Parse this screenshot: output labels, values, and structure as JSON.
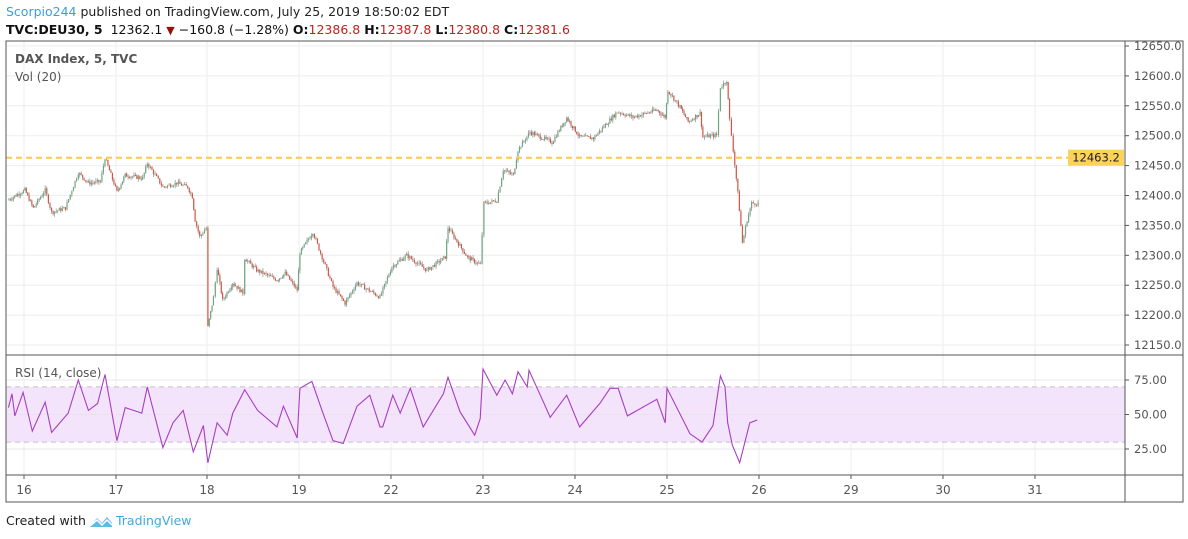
{
  "header": {
    "author": "Scorpio244",
    "published_text": "published on TradingView.com, July 25, 2019 18:50:02 EDT",
    "symbol": "TVC:DEU30, 5",
    "last": "12362.1",
    "change_direction_icon": "triangle-down",
    "change": "−160.8 (−1.28%)",
    "o_label": "O:",
    "o": "12386.8",
    "h_label": "H:",
    "h": "12387.8",
    "l_label": "L:",
    "l": "12380.8",
    "c_label": "C:",
    "c": "12381.6"
  },
  "footer": {
    "created_with": "Created with",
    "brand": "TradingView",
    "logo_icon": "tradingview-cloud-logo"
  },
  "colors": {
    "up": "#6ba583",
    "down": "#d75442",
    "rsi": "#a63fc0",
    "rsi_band": "#f3e4fc",
    "hline": "#fbc94b",
    "brand": "#3fa9dd"
  },
  "chart_data": [
    {
      "type": "candlestick",
      "title": "DAX Index, 5, TVC",
      "subtitle": "Vol (20)",
      "x_unit": "day of July 2019 (fraction = share of day's bar span)",
      "x_ticks": [
        "16",
        "17",
        "18",
        "19",
        "22",
        "23",
        "24",
        "25",
        "26",
        "29",
        "30",
        "31"
      ],
      "y_ticks": [
        "12650.0",
        "12600.0",
        "12550.0",
        "12500.0",
        "12450.0",
        "12400.0",
        "12350.0",
        "12300.0",
        "12250.0",
        "12200.0",
        "12150.0"
      ],
      "ylim": [
        12130,
        12665
      ],
      "horizontal_line": {
        "value": 12463.2,
        "label": "12463.2",
        "style": "dashed"
      },
      "grid": true,
      "approx_close_path": [
        [
          15.82,
          12392
        ],
        [
          16.01,
          12409
        ],
        [
          16.1,
          12379
        ],
        [
          16.23,
          12409
        ],
        [
          16.3,
          12372
        ],
        [
          16.45,
          12379
        ],
        [
          16.52,
          12409
        ],
        [
          16.59,
          12438
        ],
        [
          16.7,
          12421
        ],
        [
          16.83,
          12423
        ],
        [
          16.88,
          12463
        ],
        [
          17.01,
          12406
        ],
        [
          17.1,
          12434
        ],
        [
          17.29,
          12429
        ],
        [
          17.34,
          12454
        ],
        [
          17.51,
          12414
        ],
        [
          17.66,
          12421
        ],
        [
          17.78,
          12414
        ],
        [
          17.83,
          12398
        ],
        [
          17.86,
          12359
        ],
        [
          17.91,
          12331
        ],
        [
          17.98,
          12346
        ],
        [
          18.01,
          12180
        ],
        [
          18.07,
          12230
        ],
        [
          18.11,
          12279
        ],
        [
          18.17,
          12225
        ],
        [
          18.28,
          12254
        ],
        [
          18.39,
          12237
        ],
        [
          18.41,
          12295
        ],
        [
          18.54,
          12275
        ],
        [
          18.76,
          12259
        ],
        [
          18.85,
          12270
        ],
        [
          18.98,
          12242
        ],
        [
          19.01,
          12304
        ],
        [
          19.15,
          12339
        ],
        [
          19.37,
          12247
        ],
        [
          19.5,
          12220
        ],
        [
          19.63,
          12254
        ],
        [
          19.88,
          12230
        ],
        [
          22.01,
          12281
        ],
        [
          22.17,
          12300
        ],
        [
          22.39,
          12275
        ],
        [
          22.59,
          12297
        ],
        [
          22.62,
          12346
        ],
        [
          22.83,
          12297
        ],
        [
          22.97,
          12284
        ],
        [
          23.01,
          12387
        ],
        [
          23.08,
          12389
        ],
        [
          23.15,
          12392
        ],
        [
          23.22,
          12443
        ],
        [
          23.33,
          12434
        ],
        [
          23.38,
          12476
        ],
        [
          23.51,
          12506
        ],
        [
          23.75,
          12489
        ],
        [
          23.91,
          12530
        ],
        [
          24.05,
          12498
        ],
        [
          24.2,
          12496
        ],
        [
          24.46,
          12540
        ],
        [
          24.63,
          12531
        ],
        [
          24.89,
          12543
        ],
        [
          24.98,
          12531
        ],
        [
          25.01,
          12576
        ],
        [
          25.14,
          12548
        ],
        [
          25.23,
          12523
        ],
        [
          25.36,
          12538
        ],
        [
          25.39,
          12498
        ],
        [
          25.54,
          12501
        ],
        [
          25.58,
          12581
        ],
        [
          25.65,
          12593
        ],
        [
          25.68,
          12526
        ],
        [
          25.72,
          12476
        ],
        [
          25.77,
          12404
        ],
        [
          25.82,
          12321
        ],
        [
          25.87,
          12359
        ],
        [
          25.92,
          12387
        ],
        [
          25.99,
          12387
        ]
      ]
    },
    {
      "type": "line",
      "title": "RSI (14, close)",
      "y_ticks": [
        "75.00",
        "50.00",
        "25.00"
      ],
      "ylim": [
        5,
        93
      ],
      "band": [
        30,
        70
      ],
      "grid": true,
      "values": [
        [
          15.83,
          55
        ],
        [
          15.87,
          65
        ],
        [
          15.9,
          49
        ],
        [
          15.99,
          66
        ],
        [
          16.09,
          38
        ],
        [
          16.23,
          59
        ],
        [
          16.3,
          37
        ],
        [
          16.48,
          51
        ],
        [
          16.59,
          75
        ],
        [
          16.7,
          53
        ],
        [
          16.8,
          58
        ],
        [
          16.88,
          79
        ],
        [
          17.01,
          31
        ],
        [
          17.1,
          55
        ],
        [
          17.28,
          51
        ],
        [
          17.34,
          70
        ],
        [
          17.51,
          26
        ],
        [
          17.62,
          44
        ],
        [
          17.73,
          53
        ],
        [
          17.84,
          23
        ],
        [
          17.95,
          42
        ],
        [
          18.01,
          15
        ],
        [
          18.11,
          44
        ],
        [
          18.22,
          35
        ],
        [
          18.28,
          51
        ],
        [
          18.41,
          68
        ],
        [
          18.55,
          53
        ],
        [
          18.76,
          41
        ],
        [
          18.83,
          56
        ],
        [
          18.98,
          33
        ],
        [
          19.01,
          69
        ],
        [
          19.14,
          74
        ],
        [
          19.25,
          53
        ],
        [
          19.37,
          31
        ],
        [
          19.48,
          29
        ],
        [
          19.63,
          56
        ],
        [
          19.77,
          64
        ],
        [
          19.88,
          41
        ],
        [
          19.91,
          41
        ],
        [
          22.02,
          64
        ],
        [
          22.1,
          51
        ],
        [
          22.21,
          69
        ],
        [
          22.35,
          41
        ],
        [
          22.57,
          65
        ],
        [
          22.62,
          77
        ],
        [
          22.75,
          52
        ],
        [
          22.91,
          35
        ],
        [
          22.97,
          47
        ],
        [
          23.0,
          83
        ],
        [
          23.15,
          64
        ],
        [
          23.24,
          75
        ],
        [
          23.32,
          65
        ],
        [
          23.38,
          81
        ],
        [
          23.48,
          70
        ],
        [
          23.5,
          82
        ],
        [
          23.65,
          60
        ],
        [
          23.73,
          48
        ],
        [
          23.91,
          64
        ],
        [
          24.05,
          41
        ],
        [
          24.27,
          58
        ],
        [
          24.38,
          69
        ],
        [
          24.47,
          69
        ],
        [
          24.57,
          49
        ],
        [
          24.89,
          61
        ],
        [
          24.98,
          44
        ],
        [
          25.0,
          69
        ],
        [
          25.25,
          36
        ],
        [
          25.38,
          30
        ],
        [
          25.5,
          42
        ],
        [
          25.58,
          78
        ],
        [
          25.63,
          70
        ],
        [
          25.66,
          44
        ],
        [
          25.71,
          28
        ],
        [
          25.79,
          15
        ],
        [
          25.9,
          44
        ],
        [
          25.98,
          46
        ]
      ]
    }
  ]
}
